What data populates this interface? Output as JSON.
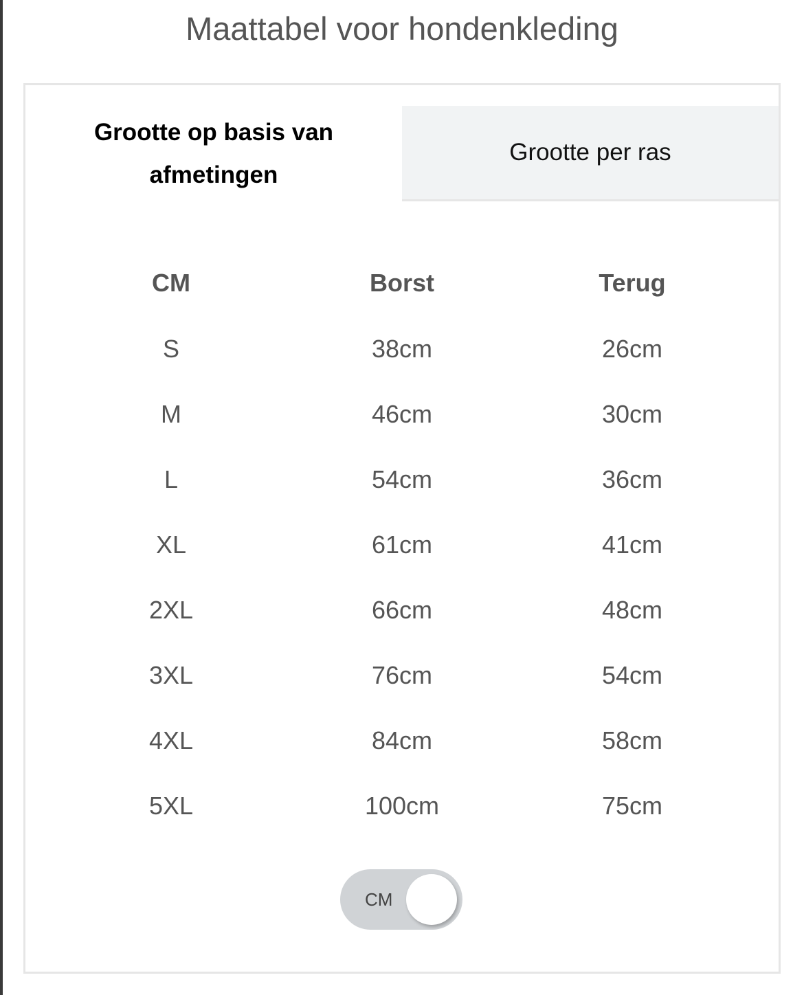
{
  "title": "Maattabel voor hondenkleding",
  "tabs": [
    {
      "label": "Grootte op basis van afmetingen",
      "active": true
    },
    {
      "label": "Grootte per ras",
      "active": false
    }
  ],
  "table": {
    "headers": [
      "CM",
      "Borst",
      "Terug"
    ],
    "rows": [
      [
        "S",
        "38cm",
        "26cm"
      ],
      [
        "M",
        "46cm",
        "30cm"
      ],
      [
        "L",
        "54cm",
        "36cm"
      ],
      [
        "XL",
        "61cm",
        "41cm"
      ],
      [
        "2XL",
        "66cm",
        "48cm"
      ],
      [
        "3XL",
        "76cm",
        "54cm"
      ],
      [
        "4XL",
        "84cm",
        "58cm"
      ],
      [
        "5XL",
        "100cm",
        "75cm"
      ]
    ]
  },
  "unit_toggle": {
    "label": "CM",
    "on": true,
    "color": "#d0d3d6"
  }
}
